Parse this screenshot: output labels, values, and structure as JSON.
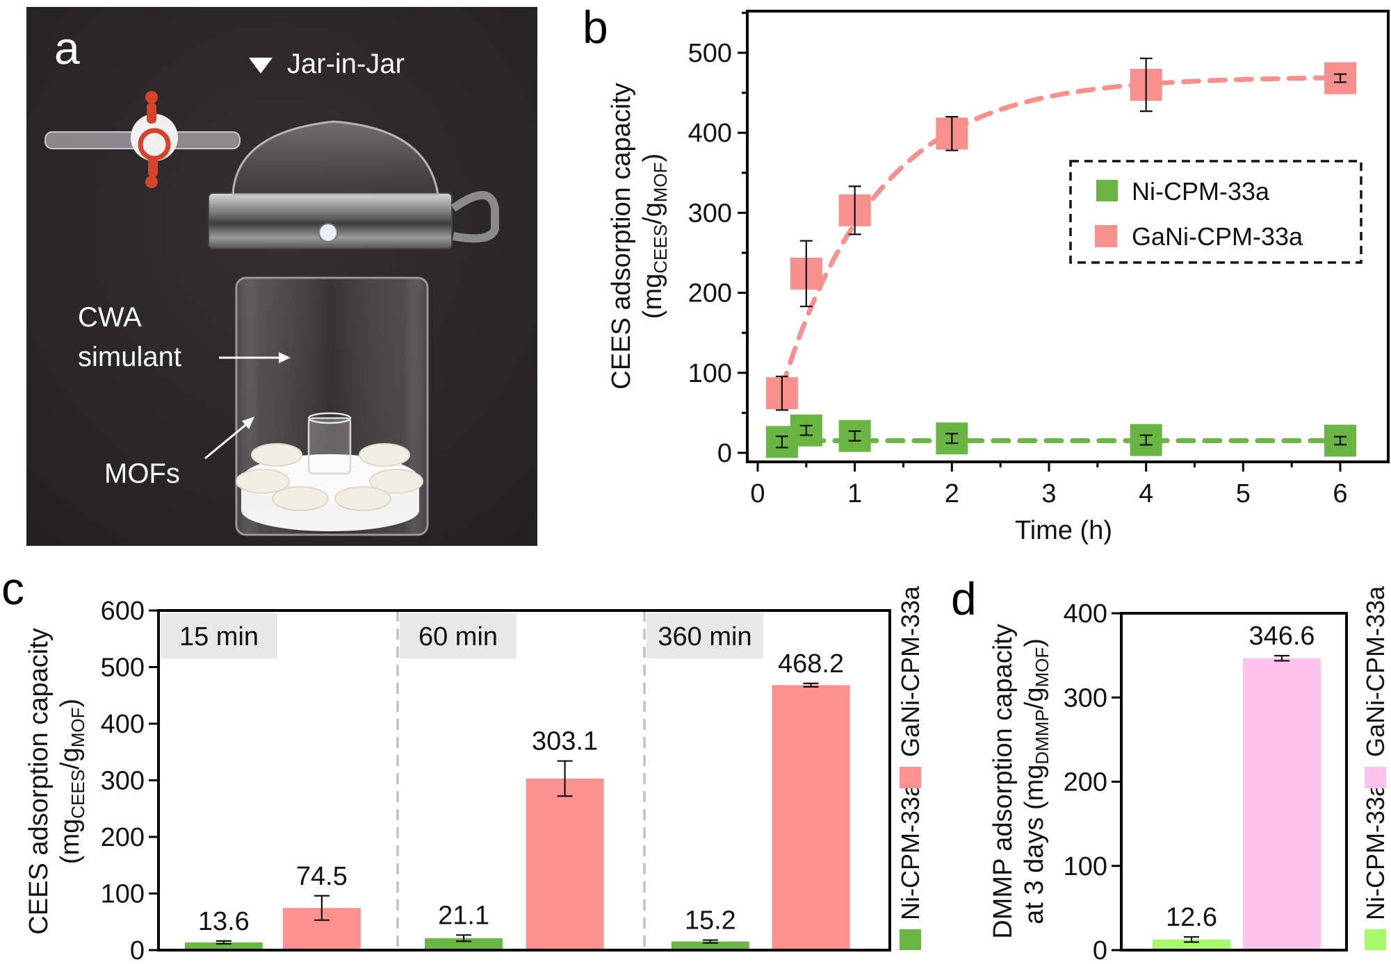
{
  "figure": {
    "panel_a": {
      "letter": "a",
      "title": "Jar-in-Jar",
      "label_cwa_line1": "CWA",
      "label_cwa_line2": "simulant",
      "label_mofs": "MOFs",
      "colors": {
        "background": "#2b2829",
        "text": "#ffffff"
      }
    }
  },
  "chart_data": [
    {
      "panel": "b",
      "type": "scatter",
      "title": "",
      "xlabel": "Time (h)",
      "ylabel_main": "CEES adsorption capacity",
      "ylabel_unit": {
        "open": "(mg",
        "sub1": "CEES",
        "mid": "/g",
        "sub2": "MOF",
        "close": ")"
      },
      "xlim": [
        -0.2,
        6.5
      ],
      "ylim": [
        -25,
        550
      ],
      "xticks": [
        0,
        1,
        2,
        3,
        4,
        5,
        6
      ],
      "xtick_labels": [
        "0",
        "1",
        "2",
        "3",
        "4",
        "5",
        "6"
      ],
      "yticks": [
        0,
        100,
        200,
        300,
        400,
        500
      ],
      "ytick_labels": [
        "0",
        "100",
        "200",
        "300",
        "400",
        "500"
      ],
      "grid": false,
      "legend_placement": "center-right",
      "legend_style": "dashed box",
      "fit": "dashed exponential-saturation curve per series",
      "series": [
        {
          "name": "Ni-CPM-33a",
          "color": "#6ab544",
          "x": [
            0.25,
            0.5,
            1,
            2,
            4,
            6
          ],
          "y": [
            13.6,
            28,
            21.1,
            18,
            16,
            15.2
          ],
          "err": [
            7,
            6,
            6,
            6,
            6,
            5
          ],
          "fit_plateau": 15.2,
          "fit_rate": 20
        },
        {
          "name": "GaNi-CPM-33a",
          "color": "#f8908d",
          "x": [
            0.25,
            0.5,
            1,
            2,
            4,
            6
          ],
          "y": [
            74.5,
            224,
            303.1,
            399,
            460,
            468.2
          ],
          "err": [
            21,
            41,
            30,
            21,
            33,
            5
          ],
          "fit_plateau": 470,
          "fit_rate": 1.0
        }
      ]
    },
    {
      "panel": "c",
      "type": "bar",
      "title": "",
      "xlabel": "",
      "ylabel_main": "CEES adsorption capacity",
      "ylabel_unit": {
        "open": "(mg",
        "sub1": "CEES",
        "mid": "/g",
        "sub2": "MOF",
        "close": ")"
      },
      "ylim": [
        0,
        600
      ],
      "yticks": [
        0,
        100,
        200,
        300,
        400,
        500,
        600
      ],
      "ytick_labels": [
        "0",
        "100",
        "200",
        "300",
        "400",
        "500",
        "600"
      ],
      "grid": false,
      "legend_placement": "right (vertical)",
      "categories": [
        "15 min",
        "60 min",
        "360 min"
      ],
      "series": [
        {
          "name": "Ni-CPM-33a",
          "color": "#6ab544",
          "values": [
            13.6,
            21.1,
            15.2
          ],
          "err": [
            2.5,
            5.5,
            2.5
          ],
          "labels": [
            "13.6",
            "21.1",
            "15.2"
          ]
        },
        {
          "name": "GaNi-CPM-33a",
          "color": "#fb928f",
          "values": [
            74.5,
            303.1,
            468.2
          ],
          "err": [
            21.5,
            31,
            3
          ],
          "labels": [
            "74.5",
            "303.1",
            "468.2"
          ]
        }
      ],
      "category_box_color": "#e8e8e8",
      "divider_color": "#c0c0c0"
    },
    {
      "panel": "d",
      "type": "bar",
      "title": "",
      "xlabel": "",
      "ylabel_line1": "DMMP adsorption capacity",
      "ylabel_line2": {
        "open": "at 3 days (mg",
        "sub1": "DMMP",
        "mid": "/g",
        "sub2": "MOF",
        "close": ")"
      },
      "ylim": [
        0,
        400
      ],
      "yticks": [
        0,
        100,
        200,
        300,
        400
      ],
      "ytick_labels": [
        "0",
        "100",
        "200",
        "300",
        "400"
      ],
      "grid": false,
      "legend_placement": "right (vertical)",
      "categories": [
        "Ni-CPM-33a",
        "GaNi-CPM-33a"
      ],
      "values": [
        12.6,
        346.6
      ],
      "err": [
        3,
        3
      ],
      "labels": [
        "12.6",
        "346.6"
      ],
      "colors": [
        "#a9f76a",
        "#ffc3ee"
      ],
      "series": [
        {
          "name": "Ni-CPM-33a",
          "color": "#a9f76a"
        },
        {
          "name": "GaNi-CPM-33a",
          "color": "#ffc3ee"
        }
      ]
    }
  ]
}
